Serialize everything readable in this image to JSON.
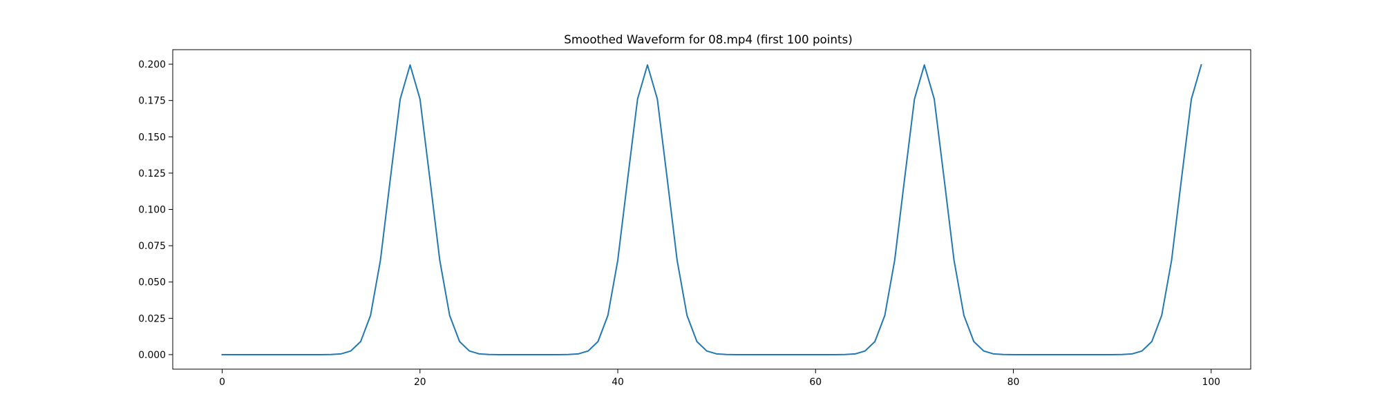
{
  "chart_data": {
    "type": "line",
    "title": "Smoothed Waveform for 08.mp4 (first 100 points)",
    "xlabel": "",
    "ylabel": "",
    "xlim": [
      -5,
      104
    ],
    "ylim": [
      -0.01,
      0.21
    ],
    "xticks": [
      0,
      20,
      40,
      60,
      80,
      100
    ],
    "xtick_labels": [
      "0",
      "20",
      "40",
      "60",
      "80",
      "100"
    ],
    "yticks": [
      0.0,
      0.025,
      0.05,
      0.075,
      0.1,
      0.125,
      0.15,
      0.175,
      0.2
    ],
    "ytick_labels": [
      "0.000",
      "0.025",
      "0.050",
      "0.075",
      "0.100",
      "0.125",
      "0.150",
      "0.175",
      "0.200"
    ],
    "grid": false,
    "series": [
      {
        "color": "#1f77b4",
        "x": [
          0,
          1,
          2,
          3,
          4,
          5,
          6,
          7,
          8,
          9,
          10,
          11,
          12,
          13,
          14,
          15,
          16,
          17,
          18,
          19,
          20,
          21,
          22,
          23,
          24,
          25,
          26,
          27,
          28,
          29,
          30,
          31,
          32,
          33,
          34,
          35,
          36,
          37,
          38,
          39,
          40,
          41,
          42,
          43,
          44,
          45,
          46,
          47,
          48,
          49,
          50,
          51,
          52,
          53,
          54,
          55,
          56,
          57,
          58,
          59,
          60,
          61,
          62,
          63,
          64,
          65,
          66,
          67,
          68,
          69,
          70,
          71,
          72,
          73,
          74,
          75,
          76,
          77,
          78,
          79,
          80,
          81,
          82,
          83,
          84,
          85,
          86,
          87,
          88,
          89,
          90,
          91,
          92,
          93,
          94,
          95,
          96,
          97,
          98,
          99
        ],
        "y": [
          0,
          0,
          0,
          0,
          0,
          0,
          0,
          0,
          0,
          0,
          0,
          0.0001,
          0.0005,
          0.0025,
          0.009,
          0.027,
          0.065,
          0.121,
          0.176,
          0.1995,
          0.176,
          0.121,
          0.065,
          0.027,
          0.009,
          0.0025,
          0.0005,
          0.0001,
          0,
          0,
          0,
          0,
          0,
          0,
          0,
          0.0001,
          0.0005,
          0.0025,
          0.009,
          0.027,
          0.065,
          0.121,
          0.176,
          0.1995,
          0.176,
          0.121,
          0.065,
          0.027,
          0.009,
          0.0025,
          0.0005,
          0.0001,
          0,
          0,
          0,
          0,
          0,
          0,
          0,
          0,
          0,
          0,
          0,
          0.0001,
          0.0005,
          0.0025,
          0.009,
          0.027,
          0.065,
          0.121,
          0.176,
          0.1995,
          0.176,
          0.121,
          0.065,
          0.027,
          0.009,
          0.0025,
          0.0005,
          0.0001,
          0,
          0,
          0,
          0,
          0,
          0,
          0,
          0,
          0,
          0,
          0,
          0.0001,
          0.0005,
          0.0025,
          0.009,
          0.027,
          0.065,
          0.121,
          0.176,
          0.1995
        ]
      }
    ]
  }
}
